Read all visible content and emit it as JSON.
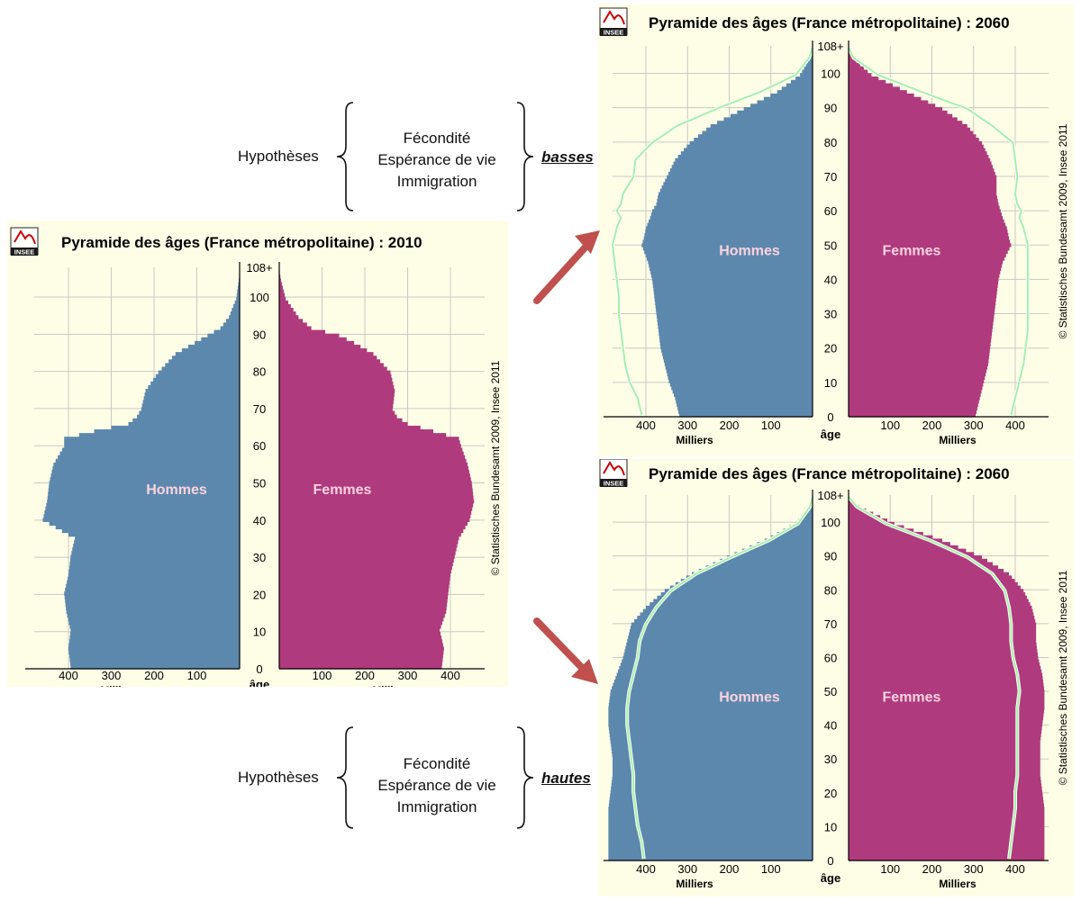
{
  "annotations": {
    "top": {
      "hypotheses_label": "Hypothèses",
      "lines": [
        "Fécondité",
        "Espérance de vie",
        "Immigration"
      ],
      "result": "basses"
    },
    "bottom": {
      "hypotheses_label": "Hypothèses",
      "lines": [
        "Fécondité",
        "Espérance de vie",
        "Immigration"
      ],
      "result": "hautes"
    }
  },
  "colors": {
    "background": "#fefee6",
    "hommes": "#5d88ad",
    "femmes": "#b03a7e",
    "reference_line": "#a6f0a6",
    "arrow": "#c0504d",
    "grid": "#c8c8c8"
  },
  "chart_data": [
    {
      "id": "pyr2010",
      "type": "bar",
      "orientation": "horizontal-pyramid",
      "title": "Pyramide des âges (France métropolitaine) : 2010",
      "logo": "INSEE",
      "copyright": "© Statistisches Bundesamt 2009, Insee 2011",
      "xlabel": "Milliers",
      "ylabel": "âge",
      "xlim": [
        0,
        480
      ],
      "x_ticks": [
        "400",
        "300",
        "200",
        "100"
      ],
      "x_ticks_right": [
        "100",
        "200",
        "300",
        "400"
      ],
      "y_ticks": [
        "0",
        "10",
        "20",
        "30",
        "40",
        "50",
        "60",
        "70",
        "80",
        "90",
        "100",
        "108+"
      ],
      "series": [
        {
          "name": "Hommes",
          "ages": [
            0,
            5,
            10,
            15,
            20,
            25,
            30,
            35,
            40,
            45,
            50,
            55,
            60,
            62,
            64,
            66,
            68,
            70,
            75,
            80,
            85,
            88,
            90,
            92,
            95,
            100,
            105,
            108
          ],
          "values": [
            395,
            400,
            395,
            405,
            410,
            400,
            395,
            385,
            460,
            450,
            445,
            435,
            410,
            410,
            340,
            260,
            240,
            230,
            220,
            190,
            150,
            105,
            75,
            45,
            25,
            8,
            2,
            0
          ]
        },
        {
          "name": "Femmes",
          "ages": [
            0,
            5,
            10,
            15,
            20,
            25,
            30,
            35,
            40,
            45,
            50,
            55,
            60,
            62,
            64,
            66,
            68,
            70,
            75,
            80,
            85,
            88,
            90,
            92,
            95,
            100,
            105,
            108
          ],
          "values": [
            380,
            385,
            375,
            390,
            395,
            400,
            410,
            420,
            445,
            455,
            450,
            440,
            425,
            420,
            360,
            300,
            275,
            265,
            270,
            260,
            220,
            175,
            140,
            75,
            45,
            15,
            4,
            0
          ]
        }
      ],
      "reference": null
    },
    {
      "id": "pyr2060low",
      "type": "bar",
      "orientation": "horizontal-pyramid",
      "title": "Pyramide des âges (France métropolitaine) : 2060",
      "logo": "INSEE",
      "copyright": "© Statistisches Bundesamt 2009, Insee 2011",
      "xlabel": "Milliers",
      "ylabel": "âge",
      "xlim": [
        0,
        480
      ],
      "x_ticks": [
        "400",
        "300",
        "200",
        "100"
      ],
      "x_ticks_right": [
        "100",
        "200",
        "300",
        "400"
      ],
      "y_ticks": [
        "0",
        "10",
        "20",
        "30",
        "40",
        "50",
        "60",
        "70",
        "80",
        "90",
        "100",
        "108+"
      ],
      "series": [
        {
          "name": "Hommes",
          "ages": [
            0,
            5,
            10,
            15,
            20,
            25,
            30,
            35,
            40,
            45,
            50,
            52,
            55,
            58,
            60,
            62,
            65,
            70,
            75,
            80,
            85,
            90,
            95,
            100,
            105,
            108
          ],
          "values": [
            320,
            330,
            345,
            355,
            365,
            370,
            375,
            380,
            385,
            395,
            410,
            405,
            400,
            390,
            385,
            375,
            370,
            350,
            330,
            295,
            245,
            165,
            85,
            30,
            6,
            0
          ]
        },
        {
          "name": "Femmes",
          "ages": [
            0,
            5,
            10,
            15,
            20,
            25,
            30,
            35,
            40,
            45,
            50,
            52,
            55,
            58,
            60,
            62,
            65,
            70,
            75,
            80,
            85,
            90,
            95,
            100,
            105,
            108
          ],
          "values": [
            305,
            315,
            325,
            335,
            340,
            345,
            350,
            355,
            360,
            370,
            390,
            385,
            380,
            370,
            365,
            360,
            355,
            355,
            340,
            320,
            285,
            225,
            140,
            55,
            10,
            0
          ]
        }
      ],
      "reference": {
        "ages": [
          0,
          5,
          10,
          15,
          20,
          25,
          30,
          35,
          40,
          45,
          50,
          55,
          58,
          60,
          62,
          65,
          70,
          75,
          80,
          85,
          90,
          95,
          100,
          105,
          108
        ],
        "hommes": [
          410,
          420,
          440,
          450,
          455,
          460,
          465,
          465,
          470,
          475,
          480,
          470,
          460,
          470,
          460,
          455,
          430,
          425,
          385,
          325,
          230,
          125,
          40,
          8,
          0
        ],
        "femmes": [
          390,
          400,
          410,
          420,
          425,
          430,
          430,
          430,
          430,
          430,
          430,
          420,
          410,
          415,
          405,
          400,
          405,
          400,
          395,
          345,
          285,
          175,
          70,
          12,
          0
        ]
      }
    },
    {
      "id": "pyr2060high",
      "type": "bar",
      "orientation": "horizontal-pyramid",
      "title": "Pyramide des âges (France métropolitaine) : 2060",
      "logo": "INSEE",
      "copyright": "© Statistisches Bundesamt 2009, Insee 2011",
      "xlabel": "Milliers",
      "ylabel": "âge",
      "xlim": [
        0,
        480
      ],
      "x_ticks": [
        "400",
        "300",
        "200",
        "100"
      ],
      "x_ticks_right": [
        "100",
        "200",
        "300",
        "400"
      ],
      "y_ticks": [
        "0",
        "10",
        "20",
        "30",
        "40",
        "50",
        "60",
        "70",
        "80",
        "90",
        "100",
        "108+"
      ],
      "series": [
        {
          "name": "Hommes",
          "ages": [
            0,
            5,
            10,
            15,
            20,
            25,
            30,
            35,
            40,
            45,
            50,
            55,
            60,
            65,
            70,
            75,
            80,
            85,
            90,
            95,
            100,
            105,
            108
          ],
          "values": [
            490,
            490,
            490,
            490,
            485,
            480,
            480,
            485,
            490,
            490,
            485,
            470,
            455,
            445,
            435,
            400,
            355,
            290,
            205,
            115,
            40,
            8,
            0
          ]
        },
        {
          "name": "Femmes",
          "ages": [
            0,
            5,
            10,
            15,
            20,
            25,
            30,
            35,
            40,
            45,
            50,
            55,
            60,
            65,
            70,
            75,
            80,
            85,
            90,
            95,
            100,
            105,
            108
          ],
          "values": [
            470,
            470,
            470,
            470,
            465,
            460,
            460,
            460,
            465,
            470,
            470,
            465,
            455,
            450,
            450,
            440,
            420,
            385,
            320,
            225,
            110,
            25,
            0
          ]
        }
      ],
      "reference": {
        "ages": [
          0,
          5,
          10,
          15,
          20,
          25,
          30,
          35,
          40,
          45,
          50,
          55,
          60,
          65,
          70,
          75,
          80,
          85,
          90,
          95,
          100,
          105,
          108
        ],
        "hommes": [
          405,
          410,
          420,
          425,
          430,
          430,
          435,
          440,
          445,
          445,
          440,
          430,
          420,
          415,
          400,
          375,
          340,
          280,
          195,
          105,
          35,
          6,
          0
        ],
        "femmes": [
          385,
          390,
          395,
          400,
          400,
          405,
          405,
          405,
          405,
          405,
          410,
          405,
          395,
          390,
          390,
          385,
          375,
          345,
          285,
          195,
          90,
          20,
          0
        ]
      }
    }
  ]
}
